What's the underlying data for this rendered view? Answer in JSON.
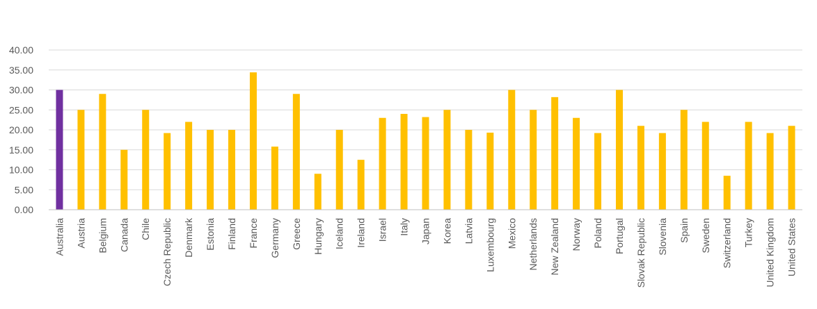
{
  "chart_data": {
    "type": "bar",
    "title": "",
    "xlabel": "",
    "ylabel": "",
    "ylim": [
      0,
      40
    ],
    "yticks": [
      "0.00",
      "5.00",
      "10.00",
      "15.00",
      "20.00",
      "25.00",
      "30.00",
      "35.00",
      "40.00"
    ],
    "grid": true,
    "legend": "none",
    "colors": {
      "default": "#FFC000",
      "highlight": "#7030A0"
    },
    "highlight_index": 0,
    "categories": [
      "Australia",
      "Austria",
      "Belgium",
      "Canada",
      "Chile",
      "Czech Republic",
      "Denmark",
      "Estonia",
      "Finland",
      "France",
      "Germany",
      "Greece",
      "Hungary",
      "Iceland",
      "Ireland",
      "Israel",
      "Italy",
      "Japan",
      "Korea",
      "Latvia",
      "Luxembourg",
      "Mexico",
      "Netherlands",
      "New Zealand",
      "Norway",
      "Poland",
      "Portugal",
      "Slovak Republic",
      "Slovenia",
      "Spain",
      "Sweden",
      "Switzerland",
      "Turkey",
      "United Kingdom",
      "United States"
    ],
    "values": [
      30,
      25,
      29,
      15,
      25,
      19.2,
      22,
      20,
      20,
      34.4,
      15.8,
      29,
      9,
      20,
      12.5,
      23,
      24,
      23.2,
      25,
      20,
      19.3,
      30,
      25,
      28.2,
      23,
      19.2,
      30,
      21,
      19.2,
      25,
      22,
      8.5,
      22,
      19.2,
      21
    ]
  }
}
